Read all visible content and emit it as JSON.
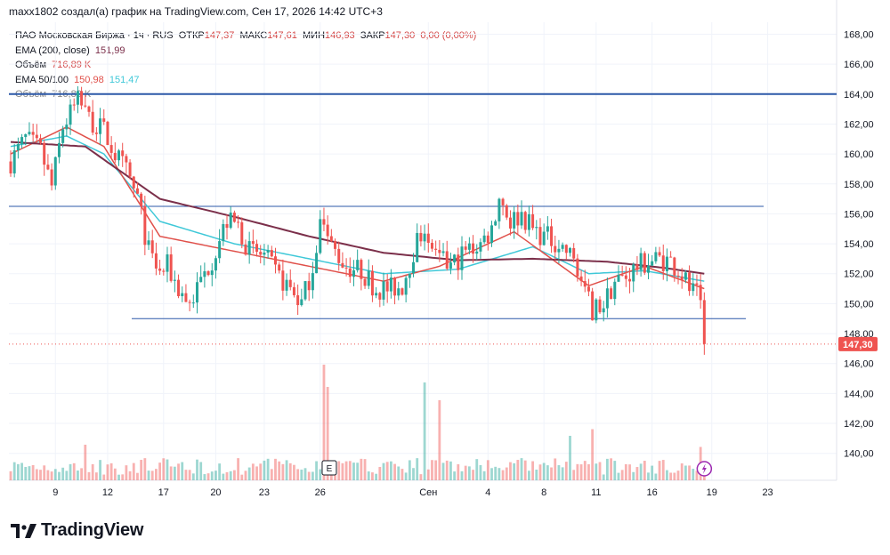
{
  "header": {
    "author_line": "maxx1802 создал(а) график на TradingView.com, Сен 17, 2026 14:42 UTC+3"
  },
  "legend": {
    "symbol": "ПАО Московская Биржа · 1ч · RUS",
    "open_label": "ОТКР",
    "open": "147,37",
    "high_label": "МАКС",
    "high": "147,61",
    "low_label": "МИН",
    "low": "146,93",
    "close_label": "ЗАКР",
    "close": "147,30",
    "change": "0,00 (0,00%)",
    "ema200_label": "EMA (200, close)",
    "ema200_value": "151,99",
    "volume_label": "Объём",
    "volume_value": "716,89 K",
    "ema50_100_label": "EMA 50/100",
    "ema50_value": "150,98",
    "ema100_value": "151,47",
    "volume2_label": "Объём",
    "volume2_value": "716,89 K"
  },
  "price_badge": "147,30",
  "event_badge": "E",
  "brand": {
    "logo_icon": "tradingview-logo-icon",
    "name": "TradingView"
  },
  "colors": {
    "up": "#26a69a",
    "down": "#ef5350",
    "ema200": "#7b2f4a",
    "ema50": "#e0504a",
    "ema100": "#3fc8d8",
    "hline": "#2c58a8"
  },
  "chart_data": {
    "type": "candlestick",
    "y_ticks": [
      "168,00",
      "166,00",
      "164,00",
      "162,00",
      "160,00",
      "158,00",
      "156,00",
      "154,00",
      "152,00",
      "150,00",
      "148,00",
      "146,00",
      "144,00",
      "142,00",
      "140,00"
    ],
    "ylim": [
      138.2,
      168.8
    ],
    "x_ticks": [
      "9",
      "12",
      "17",
      "20",
      "23",
      "26",
      "Сен",
      "4",
      "8",
      "11",
      "16",
      "19",
      "23"
    ],
    "last_price": 147.3,
    "horizontal_lines": [
      164.0,
      156.5,
      149.0
    ],
    "waypoints": [
      [
        0,
        159.5
      ],
      [
        4,
        161.0
      ],
      [
        8,
        160.2
      ],
      [
        11,
        157.8
      ],
      [
        14,
        161.8
      ],
      [
        18,
        163.5
      ],
      [
        21,
        162.3
      ],
      [
        25,
        161.5
      ],
      [
        28,
        160.0
      ],
      [
        31,
        158.8
      ],
      [
        34,
        157.0
      ],
      [
        37,
        153.5
      ],
      [
        40,
        152.0
      ],
      [
        42,
        152.5
      ],
      [
        45,
        151.0
      ],
      [
        48,
        150.0
      ],
      [
        51,
        151.5
      ],
      [
        54,
        153.0
      ],
      [
        58,
        155.5
      ],
      [
        61,
        155.2
      ],
      [
        64,
        153.5
      ],
      [
        68,
        153.2
      ],
      [
        71,
        152.0
      ],
      [
        75,
        151.0
      ],
      [
        78,
        150.0
      ],
      [
        81,
        152.5
      ],
      [
        83,
        155.5
      ],
      [
        86,
        153.8
      ],
      [
        90,
        152.5
      ],
      [
        94,
        152.2
      ],
      [
        98,
        151.0
      ],
      [
        102,
        151.0
      ],
      [
        105,
        151.2
      ],
      [
        108,
        153.5
      ],
      [
        111,
        155.2
      ],
      [
        114,
        153.0
      ],
      [
        118,
        152.5
      ],
      [
        122,
        153.5
      ],
      [
        126,
        154.0
      ],
      [
        129,
        155.0
      ],
      [
        131,
        157.2
      ],
      [
        134,
        155.5
      ],
      [
        137,
        156.0
      ],
      [
        140,
        155.0
      ],
      [
        143,
        154.5
      ],
      [
        146,
        154.2
      ],
      [
        149,
        153.5
      ],
      [
        152,
        152.5
      ],
      [
        154,
        150.5
      ],
      [
        156,
        149.6
      ],
      [
        159,
        150.0
      ],
      [
        162,
        151.5
      ],
      [
        165,
        151.8
      ],
      [
        168,
        152.5
      ],
      [
        171,
        152.8
      ],
      [
        174,
        153.0
      ],
      [
        177,
        152.8
      ],
      [
        180,
        152.0
      ],
      [
        182,
        151.0
      ],
      [
        184,
        150.5
      ],
      [
        185,
        149.5
      ],
      [
        186,
        147.3
      ]
    ],
    "ema200": [
      [
        0,
        160.8
      ],
      [
        20,
        160.5
      ],
      [
        40,
        157.0
      ],
      [
        60,
        155.8
      ],
      [
        80,
        154.5
      ],
      [
        100,
        153.4
      ],
      [
        120,
        152.9
      ],
      [
        140,
        153.0
      ],
      [
        160,
        152.8
      ],
      [
        175,
        152.4
      ],
      [
        186,
        152.0
      ]
    ],
    "ema100": [
      [
        0,
        160.5
      ],
      [
        15,
        161.2
      ],
      [
        25,
        160.0
      ],
      [
        40,
        155.5
      ],
      [
        60,
        154.0
      ],
      [
        80,
        153.0
      ],
      [
        100,
        152.0
      ],
      [
        120,
        152.3
      ],
      [
        140,
        153.8
      ],
      [
        155,
        152.0
      ],
      [
        170,
        152.2
      ],
      [
        186,
        151.5
      ]
    ],
    "ema50": [
      [
        0,
        160.0
      ],
      [
        15,
        161.8
      ],
      [
        25,
        160.5
      ],
      [
        40,
        154.5
      ],
      [
        60,
        153.5
      ],
      [
        80,
        152.5
      ],
      [
        100,
        151.5
      ],
      [
        115,
        152.5
      ],
      [
        135,
        154.8
      ],
      [
        155,
        151.2
      ],
      [
        170,
        152.5
      ],
      [
        186,
        151.0
      ]
    ],
    "volume_spikes": [
      [
        84,
        5.2
      ],
      [
        85,
        4.2
      ],
      [
        111,
        4.4
      ],
      [
        115,
        3.6
      ],
      [
        20,
        1.6
      ],
      [
        150,
        2.0
      ],
      [
        156,
        2.3
      ],
      [
        185,
        1.5
      ]
    ]
  }
}
